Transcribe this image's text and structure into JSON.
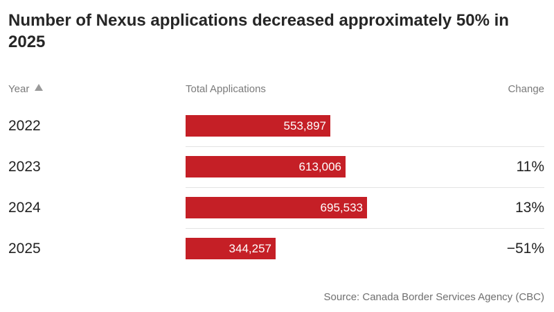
{
  "title": "Number of Nexus applications decreased approximately 50% in 2025",
  "headers": {
    "year": "Year",
    "total": "Total Applications",
    "change": "Change"
  },
  "source": "Source: Canada Border Services Agency (CBC)",
  "colors": {
    "bar": "#c51f26"
  },
  "icons": {
    "sort": "sort-ascending-triangle-icon"
  },
  "chart_data": {
    "type": "bar",
    "orientation": "horizontal",
    "title": "Number of Nexus applications decreased approximately 50% in 2025",
    "categories": [
      "2022",
      "2023",
      "2024",
      "2025"
    ],
    "values": [
      553897,
      613006,
      695533,
      344257
    ],
    "value_labels": [
      "553,897",
      "613,006",
      "695,533",
      "344,257"
    ],
    "change": [
      "",
      "11%",
      "13%",
      "−51%"
    ],
    "xlim": [
      0,
      695533
    ],
    "source": "Source: Canada Border Services Agency (CBC)"
  }
}
